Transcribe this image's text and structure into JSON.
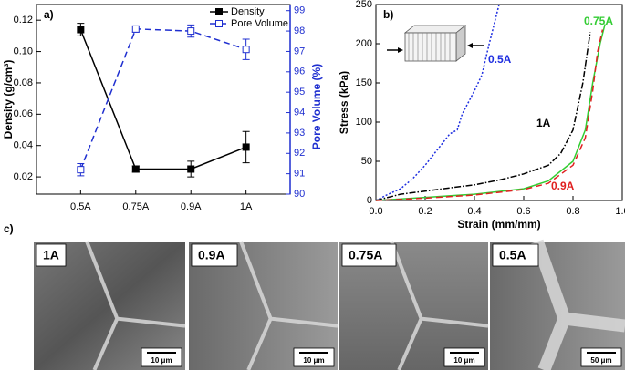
{
  "chart_data": [
    {
      "type": "line",
      "panel_label": "a)",
      "ylabel": "Density (g/cm³)",
      "y2label": "Pore Volume (%)",
      "categories": [
        "0.5A",
        "0.75A",
        "0.9A",
        "1A"
      ],
      "ylim": [
        0.009,
        0.13
      ],
      "yticks": [
        0.02,
        0.04,
        0.06,
        0.08,
        {
          "value": 0.1,
          "label": "0.10"
        },
        0.12
      ],
      "y2lim": [
        90,
        99.3
      ],
      "y2ticks": [
        90,
        91,
        92,
        93,
        94,
        95,
        96,
        97,
        98,
        99
      ],
      "y2color": "#1f2fd0",
      "legend": "top-right",
      "series": [
        {
          "name": "Density",
          "color": "#000000",
          "dash": "solid",
          "marker": "filled-square",
          "values": [
            0.114,
            0.025,
            0.025,
            0.039
          ],
          "errors": [
            0.004,
            0.002,
            0.005,
            0.01
          ]
        },
        {
          "name": "Pore Volume",
          "color": "#1f2fd0",
          "dash": "dashed",
          "marker": "hollow-square",
          "axis": "y2",
          "values": [
            91.2,
            98.1,
            98.0,
            97.1
          ],
          "errors": [
            0.3,
            0.15,
            0.3,
            0.5
          ]
        }
      ]
    },
    {
      "type": "line",
      "panel_label": "b)",
      "xlabel": "Strain (mm/mm)",
      "ylabel": "Stress (kPa)",
      "xlim": [
        0,
        1
      ],
      "xticks": [
        {
          "value": 0,
          "label": "0.0"
        },
        0.2,
        0.4,
        0.6,
        0.8,
        {
          "value": 1,
          "label": "1.0"
        }
      ],
      "ylim": [
        0,
        250
      ],
      "yticks": [
        0,
        50,
        100,
        150,
        200,
        250
      ],
      "series_labels": true,
      "series": [
        {
          "name": "0.5A",
          "color": "#1f2fe0",
          "dash": "dotted",
          "x": [
            0,
            0.05,
            0.1,
            0.15,
            0.2,
            0.25,
            0.3,
            0.33,
            0.35,
            0.4,
            0.43,
            0.46,
            0.5
          ],
          "values": [
            0,
            8,
            15,
            28,
            45,
            65,
            85,
            90,
            110,
            140,
            160,
            200,
            250
          ]
        },
        {
          "name": "1A",
          "color": "#000000",
          "dash": "dash-dot",
          "x": [
            0,
            0.1,
            0.2,
            0.3,
            0.4,
            0.5,
            0.6,
            0.7,
            0.75,
            0.8,
            0.84,
            0.87
          ],
          "values": [
            0,
            8,
            12,
            16,
            20,
            26,
            34,
            45,
            60,
            90,
            150,
            215
          ]
        },
        {
          "name": "0.75A",
          "color": "#33cc33",
          "dash": "solid",
          "x": [
            0,
            0.2,
            0.4,
            0.6,
            0.7,
            0.8,
            0.85,
            0.88,
            0.91,
            0.93
          ],
          "values": [
            0,
            4,
            8,
            15,
            25,
            50,
            90,
            150,
            200,
            225
          ]
        },
        {
          "name": "0.9A",
          "color": "#e02020",
          "dash": "dashed",
          "x": [
            0,
            0.2,
            0.4,
            0.6,
            0.7,
            0.8,
            0.85,
            0.88,
            0.9,
            0.92
          ],
          "values": [
            0,
            3,
            7,
            14,
            22,
            45,
            80,
            140,
            190,
            218
          ]
        }
      ]
    }
  ],
  "images_panel": {
    "panel_label": "c)",
    "images": [
      {
        "label": "1A",
        "scale_bar": "10 μm"
      },
      {
        "label": "0.9A",
        "scale_bar": "10 μm"
      },
      {
        "label": "0.75A",
        "scale_bar": "10 μm"
      },
      {
        "label": "0.5A",
        "scale_bar": "50 μm"
      }
    ]
  }
}
